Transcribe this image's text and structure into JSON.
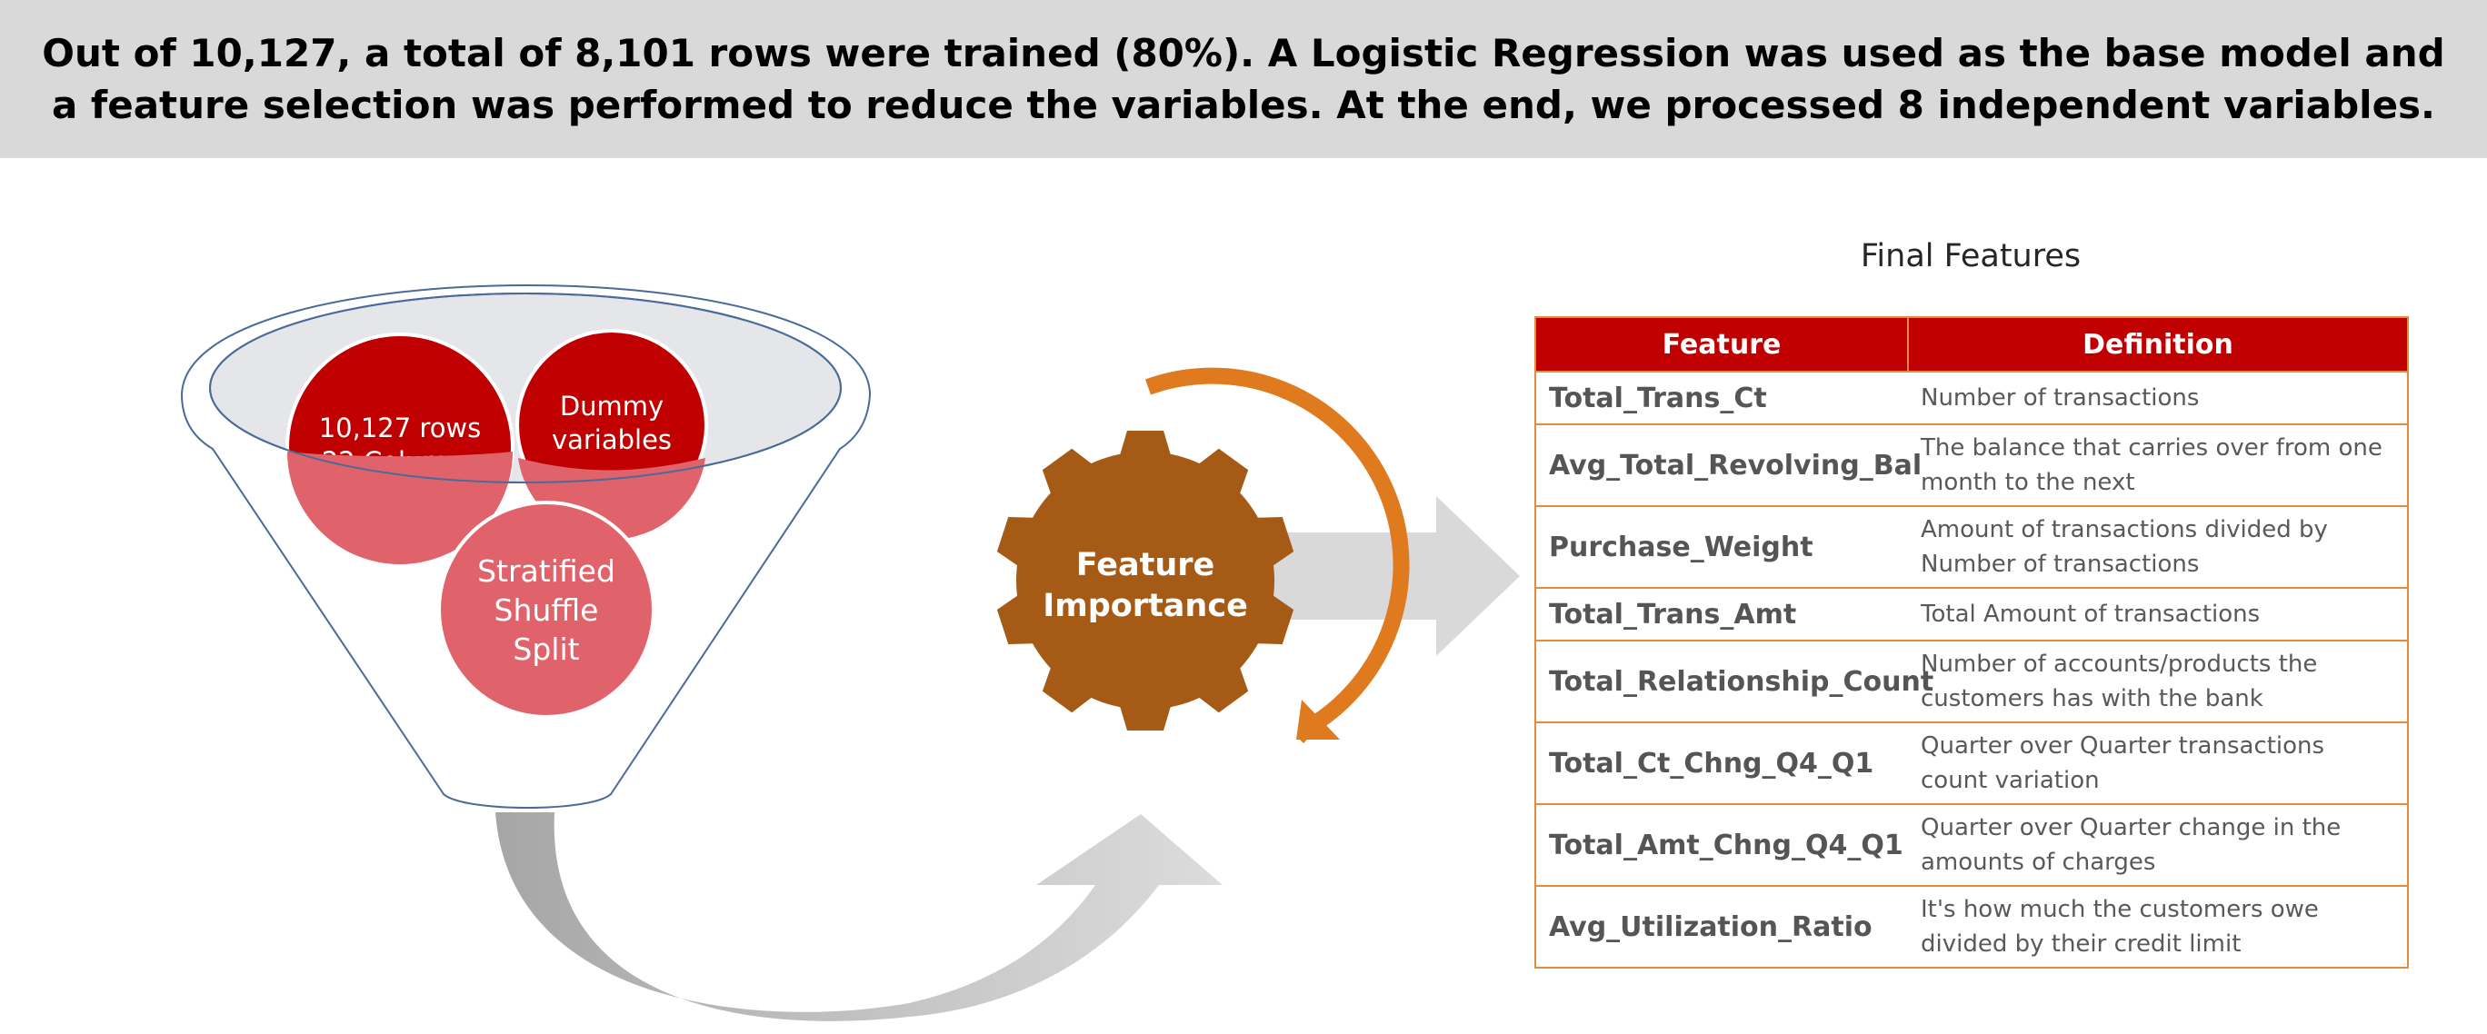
{
  "header": {
    "text": "Out of 10,127, a total of 8,101 rows were trained (80%). A Logistic Regression was used as the base model and a feature selection was performed to reduce the variables. At the end, we processed 8 independent variables."
  },
  "funnel": {
    "circle_data_line1": "10,127 rows",
    "circle_data_line2": "22 Columns",
    "circle_dummy_line1": "Dummy",
    "circle_dummy_line2": "variables",
    "circle_split_line1": "Stratified",
    "circle_split_line2": "Shuffle",
    "circle_split_line3": "Split"
  },
  "gear": {
    "line1": "Feature",
    "line2": "Importance"
  },
  "colors": {
    "banner": "#d9d9d9",
    "red": "#c00000",
    "light_red": "#e0636b",
    "gear_brown": "#a55a16",
    "orange_arrow": "#e07a1f",
    "table_border": "#e58b3a"
  },
  "final_features": {
    "title": "Final Features",
    "headers": [
      "Feature",
      "Definition"
    ],
    "rows": [
      {
        "feature": "Total_Trans_Ct",
        "definition": "Number of transactions"
      },
      {
        "feature": "Avg_Total_Revolving_Bal",
        "definition": "The balance that carries over from one month to the next"
      },
      {
        "feature": "Purchase_Weight",
        "definition": "Amount of transactions divided by Number of transactions"
      },
      {
        "feature": "Total_Trans_Amt",
        "definition": "Total Amount of transactions"
      },
      {
        "feature": "Total_Relationship_Count",
        "definition": "Number of accounts/products the customers has with the bank"
      },
      {
        "feature": "Total_Ct_Chng_Q4_Q1",
        "definition": "Quarter over Quarter transactions count variation"
      },
      {
        "feature": "Total_Amt_Chng_Q4_Q1",
        "definition": "Quarter over Quarter change in the amounts of charges"
      },
      {
        "feature": "Avg_Utilization_Ratio",
        "definition": "It's how much the customers owe divided by their credit limit"
      }
    ]
  }
}
